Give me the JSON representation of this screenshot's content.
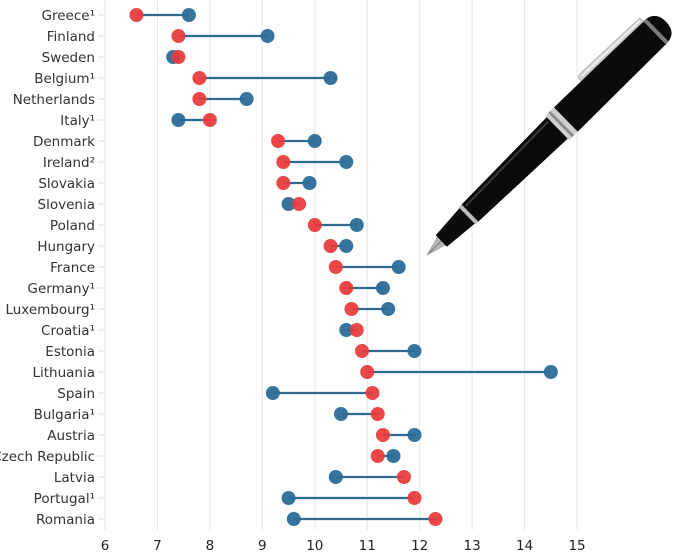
{
  "chart_data": {
    "type": "dumbbell",
    "title": "",
    "xlabel": "",
    "ylabel": "",
    "xlim": [
      6,
      15
    ],
    "x_ticks": [
      6,
      7,
      8,
      9,
      10,
      11,
      12,
      13,
      14,
      15
    ],
    "grid": "vertical",
    "legend": "none",
    "colors": {
      "red_series": "#e8393a",
      "blue_series": "#2b6c98",
      "connector": "#2e6a94"
    },
    "series": [
      {
        "name": "red",
        "color": "#e8393a"
      },
      {
        "name": "blue",
        "color": "#2b6c98"
      }
    ],
    "categories": [
      {
        "label": "Greece¹",
        "red": 6.6,
        "blue": 7.6
      },
      {
        "label": "Finland",
        "red": 7.4,
        "blue": 9.1
      },
      {
        "label": "Sweden",
        "red": 7.4,
        "blue": 7.3
      },
      {
        "label": "Belgium¹",
        "red": 7.8,
        "blue": 10.3
      },
      {
        "label": "Netherlands",
        "red": 7.8,
        "blue": 8.7
      },
      {
        "label": "Italy¹",
        "red": 8.0,
        "blue": 7.4
      },
      {
        "label": "Denmark",
        "red": 9.3,
        "blue": 10.0
      },
      {
        "label": "Ireland²",
        "red": 9.4,
        "blue": 10.6
      },
      {
        "label": "Slovakia",
        "red": 9.4,
        "blue": 9.9
      },
      {
        "label": "Slovenia",
        "red": 9.7,
        "blue": 9.5
      },
      {
        "label": "Poland",
        "red": 10.0,
        "blue": 10.8
      },
      {
        "label": "Hungary",
        "red": 10.3,
        "blue": 10.6
      },
      {
        "label": "France",
        "red": 10.4,
        "blue": 11.6
      },
      {
        "label": "Germany¹",
        "red": 10.6,
        "blue": 11.3
      },
      {
        "label": "Luxembourg¹",
        "red": 10.7,
        "blue": 11.4
      },
      {
        "label": "Croatia¹",
        "red": 10.8,
        "blue": 10.6
      },
      {
        "label": "Estonia",
        "red": 10.9,
        "blue": 11.9
      },
      {
        "label": "Lithuania",
        "red": 11.0,
        "blue": 14.5
      },
      {
        "label": "Spain",
        "red": 11.1,
        "blue": 9.2
      },
      {
        "label": "Bulgaria¹",
        "red": 11.2,
        "blue": 10.5
      },
      {
        "label": "Austria",
        "red": 11.3,
        "blue": 11.9
      },
      {
        "label": "Czech Republic",
        "red": 11.2,
        "blue": 11.5
      },
      {
        "label": "Latvia",
        "red": 11.7,
        "blue": 10.4
      },
      {
        "label": "Portugal¹",
        "red": 11.9,
        "blue": 9.5
      },
      {
        "label": "Romania",
        "red": 12.3,
        "blue": 9.6
      }
    ]
  },
  "decoration": {
    "image": "fountain-pen",
    "colors": {
      "body": "#0b0b0b",
      "trim": "#c9c9c9",
      "nib": "#b8b8b8"
    }
  }
}
